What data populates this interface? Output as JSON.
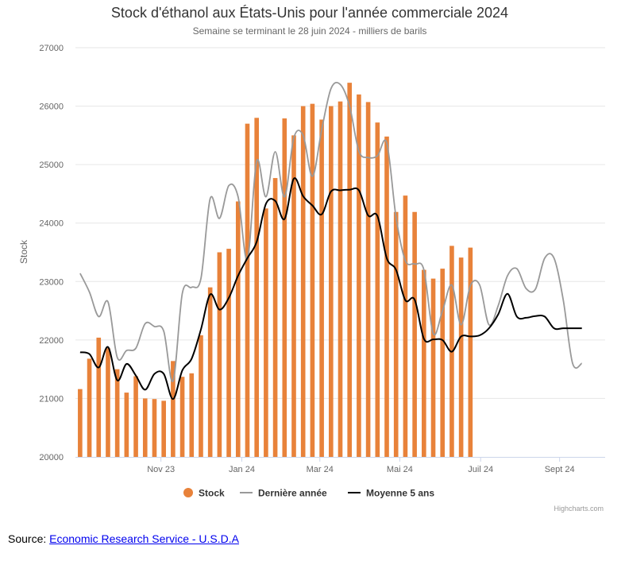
{
  "chart_data": {
    "type": "bar",
    "title": "Stock d'éthanol aux États-Unis pour l'année commerciale 2024",
    "subtitle": "Semaine se terminant le 28 juin 2024 - milliers de barils",
    "ylabel": "Stock",
    "ylim": [
      20000,
      27000
    ],
    "yticks": [
      "20000",
      "21000",
      "22000",
      "23000",
      "24000",
      "25000",
      "26000",
      "27000"
    ],
    "xticks": [
      "Nov 23",
      "Jan 24",
      "Mar 24",
      "Mai 24",
      "Juil 24",
      "Sept 24"
    ],
    "week_count": 57,
    "xtick_weeks": [
      8.7,
      17.4,
      25.8,
      34.4,
      43.1,
      51.6
    ],
    "grid": true,
    "legend_position": "bottom-center",
    "colors": {
      "stock": "#e8823a",
      "derniere_annee": "#999999",
      "moyenne": "#000000",
      "grid": "#e6e6e6"
    },
    "series": [
      {
        "name": "Stock",
        "kind": "bar",
        "weeks": [
          0,
          1,
          2,
          3,
          4,
          5,
          6,
          7,
          8,
          9,
          10,
          11,
          12,
          13,
          14,
          15,
          16,
          17,
          18,
          19,
          20,
          21,
          22,
          23,
          24,
          25,
          26,
          27,
          28,
          29,
          30,
          31,
          32,
          33,
          34,
          35,
          36,
          37,
          38,
          39,
          40,
          41,
          42
        ],
        "values": [
          21160,
          21680,
          22040,
          21860,
          21500,
          21100,
          21380,
          21000,
          20990,
          20960,
          21640,
          21370,
          21430,
          22080,
          22900,
          23500,
          23560,
          24370,
          25700,
          25800,
          24250,
          24770,
          25790,
          25500,
          26000,
          26040,
          25770,
          26000,
          26080,
          26400,
          26200,
          26070,
          25720,
          25480,
          24190,
          24470,
          24190,
          23200,
          23050,
          23220,
          23610,
          23410,
          23580
        ]
      },
      {
        "name": "Dernière année",
        "kind": "line",
        "weeks": [
          0,
          1,
          2,
          3,
          4,
          5,
          6,
          7,
          8,
          9,
          10,
          11,
          12,
          13,
          14,
          15,
          16,
          17,
          18,
          19,
          20,
          21,
          22,
          23,
          24,
          25,
          26,
          27,
          28,
          29,
          30,
          31,
          32,
          33,
          34,
          35,
          36,
          37,
          38,
          39,
          40,
          41,
          42,
          43,
          44,
          45,
          46,
          47,
          48,
          49,
          50,
          51,
          52,
          53,
          54
        ],
        "values": [
          23140,
          22820,
          22400,
          22650,
          21700,
          21820,
          21860,
          22280,
          22230,
          22150,
          21300,
          22800,
          22900,
          23050,
          24420,
          24080,
          24640,
          24450,
          23380,
          25060,
          24450,
          25220,
          24450,
          25460,
          25500,
          24800,
          25600,
          26300,
          26370,
          26000,
          25230,
          25120,
          25150,
          25370,
          24100,
          23360,
          23300,
          23200,
          22110,
          22500,
          22940,
          22260,
          22930,
          22940,
          22260,
          22590,
          23100,
          23220,
          22880,
          22870,
          23400,
          23400,
          22680,
          21600,
          21600
        ]
      },
      {
        "name": "Moyenne 5 ans",
        "kind": "line",
        "weeks": [
          0,
          1,
          2,
          3,
          4,
          5,
          6,
          7,
          8,
          9,
          10,
          11,
          12,
          13,
          14,
          15,
          16,
          17,
          18,
          19,
          20,
          21,
          22,
          23,
          24,
          25,
          26,
          27,
          28,
          29,
          30,
          31,
          32,
          33,
          34,
          35,
          36,
          37,
          38,
          39,
          40,
          41,
          42,
          43,
          44,
          45,
          46,
          47,
          48,
          49,
          50,
          51,
          52,
          53,
          54
        ],
        "values": [
          21790,
          21760,
          21530,
          21880,
          21310,
          21590,
          21390,
          21150,
          21420,
          21420,
          20990,
          21480,
          21680,
          22180,
          22780,
          22520,
          22720,
          23100,
          23400,
          23680,
          24330,
          24380,
          24070,
          24760,
          24460,
          24300,
          24150,
          24540,
          24560,
          24570,
          24560,
          24130,
          24120,
          23400,
          23200,
          22680,
          22690,
          22020,
          22010,
          22000,
          21800,
          22060,
          22060,
          22080,
          22200,
          22440,
          22790,
          22400,
          22380,
          22410,
          22400,
          22200,
          22200,
          22200,
          22200
        ]
      }
    ]
  },
  "legend": {
    "stock": "Stock",
    "derniere_annee": "Dernière année",
    "moyenne": "Moyenne 5 ans"
  },
  "credits": "Highcharts.com",
  "source": {
    "prefix": "Source: ",
    "link_text": "Economic Research Service - U.S.D.A"
  }
}
